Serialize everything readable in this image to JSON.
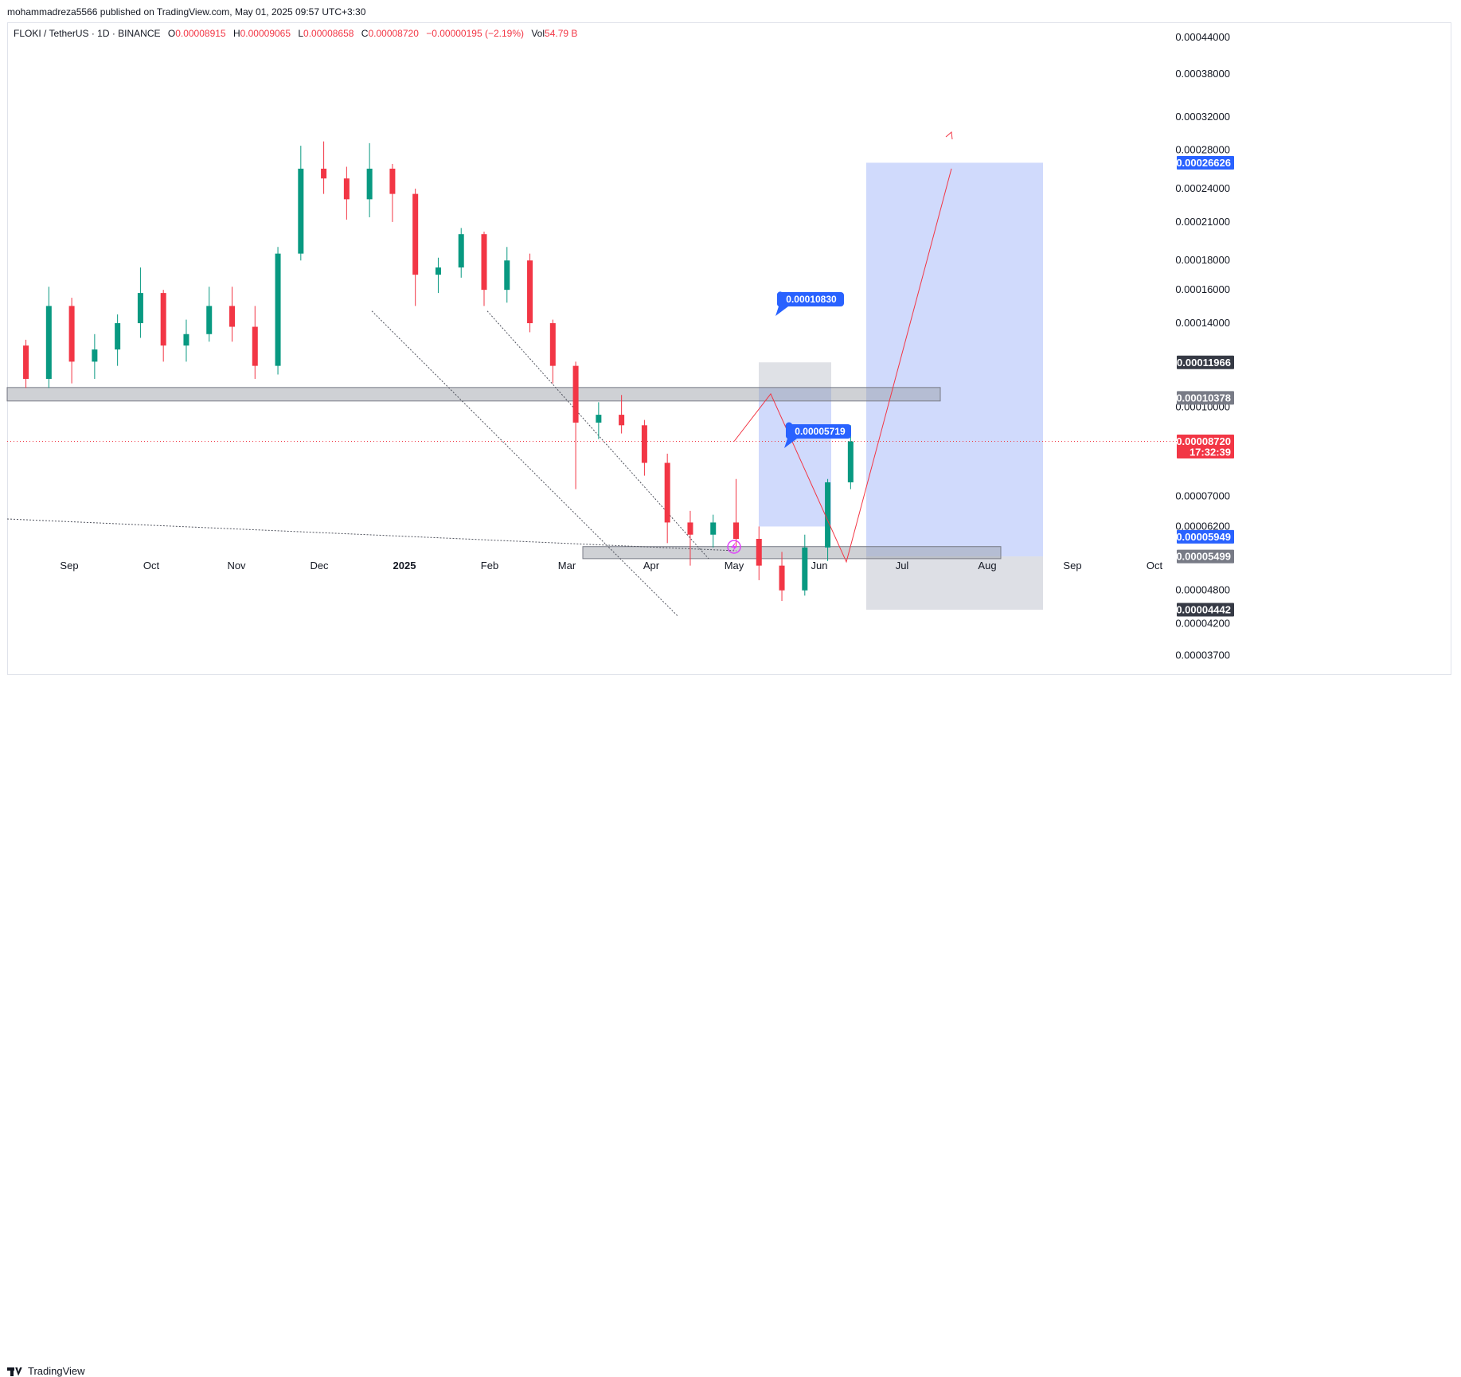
{
  "header": {
    "publish_note": "mohammadreza5566 published on TradingView.com, May 01, 2025 09:57 UTC+3:30"
  },
  "legend": {
    "symbol": "FLOKI / TetherUS · 1D · BINANCE",
    "open_label": "O",
    "open": "0.00008915",
    "high_label": "H",
    "high": "0.00009065",
    "low_label": "L",
    "low": "0.00008658",
    "close_label": "C",
    "close": "0.00008720",
    "change": "−0.00000195 (−2.19%)",
    "vol_label": "Vol",
    "vol": "54.79 B"
  },
  "footer": {
    "brand": "TradingView"
  },
  "colors": {
    "up": "#089981",
    "down": "#f23645",
    "accent_blue": "#2962ff",
    "zone_blue": "#bccbfb",
    "zone_gray": "#d1d4dc",
    "plan_line": "#f23645"
  },
  "chart_data": {
    "type": "candlestick",
    "symbol": "FLOKI / TetherUS",
    "timeframe": "1D",
    "exchange": "BINANCE",
    "y_scale": "log",
    "ylim": [
      3.42e-05,
      0.00046
    ],
    "x_labels": [
      "Sep",
      "Oct",
      "Nov",
      "Dec",
      "2025",
      "Feb",
      "Mar",
      "Apr",
      "May",
      "Jun",
      "Jul",
      "Aug",
      "Sep",
      "Oct"
    ],
    "y_ticks": [
      "0.00044000",
      "0.00038000",
      "0.00032000",
      "0.00028000",
      "0.00024000",
      "0.00021000",
      "0.00018000",
      "0.00016000",
      "0.00014000",
      "0.00010000",
      "0.00007000",
      "0.00006200",
      "0.00004800",
      "0.00004200",
      "0.00003700"
    ],
    "y_tick_values": [
      0.00044,
      0.00038,
      0.00032,
      0.00028,
      0.00024,
      0.00021,
      0.00018,
      0.00016,
      0.00014,
      0.0001,
      7e-05,
      6.2e-05,
      4.8e-05,
      4.2e-05,
      3.7e-05
    ],
    "price_tags": [
      {
        "label": "0.00026626",
        "value": 0.00026626,
        "color": "#2962ff"
      },
      {
        "label": "0.00011966",
        "value": 0.00011966,
        "color": "#363a45"
      },
      {
        "label": "0.00010378",
        "value": 0.00010378,
        "color": "#787b86"
      },
      {
        "label": "0.00008720",
        "value": 8.72e-05,
        "color": "#f23645",
        "sub": "17:32:39"
      },
      {
        "label": "0.00005949",
        "value": 5.949e-05,
        "color": "#2962ff"
      },
      {
        "label": "0.00005499",
        "value": 5.499e-05,
        "color": "#787b86"
      },
      {
        "label": "0.00004442",
        "value": 4.442e-05,
        "color": "#363a45"
      }
    ],
    "callouts": [
      {
        "label": "0.00010830",
        "value": 0.0001083
      },
      {
        "label": "0.00005719",
        "value": 5.719e-05
      }
    ],
    "zones": [
      {
        "name": "resistance",
        "low": 0.0001025,
        "high": 0.0001082
      },
      {
        "name": "support",
        "low": 5.45e-05,
        "high": 5.72e-05
      }
    ],
    "ohlc_weekly": [
      {
        "date": "2024-08-20",
        "o": 0.000128,
        "h": 0.000131,
        "l": 0.000108,
        "c": 0.000112
      },
      {
        "date": "2024-08-27",
        "o": 0.000112,
        "h": 0.000162,
        "l": 0.000108,
        "c": 0.00015
      },
      {
        "date": "2024-09-03",
        "o": 0.00015,
        "h": 0.000155,
        "l": 0.00011,
        "c": 0.00012
      },
      {
        "date": "2024-09-10",
        "o": 0.00012,
        "h": 0.000134,
        "l": 0.000112,
        "c": 0.000126
      },
      {
        "date": "2024-09-17",
        "o": 0.000126,
        "h": 0.000145,
        "l": 0.000118,
        "c": 0.00014
      },
      {
        "date": "2024-09-24",
        "o": 0.00014,
        "h": 0.000175,
        "l": 0.000132,
        "c": 0.000158
      },
      {
        "date": "2024-10-01",
        "o": 0.000158,
        "h": 0.00016,
        "l": 0.00012,
        "c": 0.000128
      },
      {
        "date": "2024-10-08",
        "o": 0.000128,
        "h": 0.000142,
        "l": 0.00012,
        "c": 0.000134
      },
      {
        "date": "2024-10-15",
        "o": 0.000134,
        "h": 0.000162,
        "l": 0.00013,
        "c": 0.00015
      },
      {
        "date": "2024-10-22",
        "o": 0.00015,
        "h": 0.000162,
        "l": 0.00013,
        "c": 0.000138
      },
      {
        "date": "2024-10-29",
        "o": 0.000138,
        "h": 0.00015,
        "l": 0.000112,
        "c": 0.000118
      },
      {
        "date": "2024-11-05",
        "o": 0.000118,
        "h": 0.00019,
        "l": 0.000114,
        "c": 0.000185
      },
      {
        "date": "2024-11-12",
        "o": 0.000185,
        "h": 0.000285,
        "l": 0.00018,
        "c": 0.00026
      },
      {
        "date": "2024-11-19",
        "o": 0.00026,
        "h": 0.00029,
        "l": 0.000235,
        "c": 0.00025
      },
      {
        "date": "2024-11-26",
        "o": 0.00025,
        "h": 0.000262,
        "l": 0.000212,
        "c": 0.00023
      },
      {
        "date": "2024-12-03",
        "o": 0.00023,
        "h": 0.000288,
        "l": 0.000214,
        "c": 0.00026
      },
      {
        "date": "2024-12-10",
        "o": 0.00026,
        "h": 0.000265,
        "l": 0.00021,
        "c": 0.000235
      },
      {
        "date": "2024-12-17",
        "o": 0.000235,
        "h": 0.00024,
        "l": 0.00015,
        "c": 0.00017
      },
      {
        "date": "2024-12-24",
        "o": 0.00017,
        "h": 0.000182,
        "l": 0.000158,
        "c": 0.000175
      },
      {
        "date": "2024-12-31",
        "o": 0.000175,
        "h": 0.000205,
        "l": 0.000168,
        "c": 0.0002
      },
      {
        "date": "2025-01-07",
        "o": 0.0002,
        "h": 0.000202,
        "l": 0.00015,
        "c": 0.00016
      },
      {
        "date": "2025-01-14",
        "o": 0.00016,
        "h": 0.00019,
        "l": 0.000152,
        "c": 0.00018
      },
      {
        "date": "2025-01-21",
        "o": 0.00018,
        "h": 0.000185,
        "l": 0.000135,
        "c": 0.00014
      },
      {
        "date": "2025-01-28",
        "o": 0.00014,
        "h": 0.000142,
        "l": 0.00011,
        "c": 0.000118
      },
      {
        "date": "2025-02-04",
        "o": 0.000118,
        "h": 0.00012,
        "l": 7.2e-05,
        "c": 9.4e-05
      },
      {
        "date": "2025-02-11",
        "o": 9.4e-05,
        "h": 0.000102,
        "l": 8.8e-05,
        "c": 9.7e-05
      },
      {
        "date": "2025-02-18",
        "o": 9.7e-05,
        "h": 0.000105,
        "l": 9e-05,
        "c": 9.3e-05
      },
      {
        "date": "2025-02-25",
        "o": 9.3e-05,
        "h": 9.5e-05,
        "l": 7.6e-05,
        "c": 8e-05
      },
      {
        "date": "2025-03-04",
        "o": 8e-05,
        "h": 8.3e-05,
        "l": 5.8e-05,
        "c": 6.3e-05
      },
      {
        "date": "2025-03-11",
        "o": 6.3e-05,
        "h": 6.6e-05,
        "l": 5.3e-05,
        "c": 6e-05
      },
      {
        "date": "2025-03-18",
        "o": 6e-05,
        "h": 6.5e-05,
        "l": 5.7e-05,
        "c": 6.3e-05
      },
      {
        "date": "2025-03-25",
        "o": 6.3e-05,
        "h": 7.5e-05,
        "l": 5.7e-05,
        "c": 5.9e-05
      },
      {
        "date": "2025-04-01",
        "o": 5.9e-05,
        "h": 6.2e-05,
        "l": 5e-05,
        "c": 5.3e-05
      },
      {
        "date": "2025-04-08",
        "o": 5.3e-05,
        "h": 5.6e-05,
        "l": 4.6e-05,
        "c": 4.8e-05
      },
      {
        "date": "2025-04-15",
        "o": 4.8e-05,
        "h": 6e-05,
        "l": 4.7e-05,
        "c": 5.7e-05
      },
      {
        "date": "2025-04-22",
        "o": 5.7e-05,
        "h": 7.5e-05,
        "l": 5.4e-05,
        "c": 7.4e-05
      },
      {
        "date": "2025-04-29",
        "o": 7.4e-05,
        "h": 9.3e-05,
        "l": 7.2e-05,
        "c": 8.72e-05
      }
    ]
  }
}
